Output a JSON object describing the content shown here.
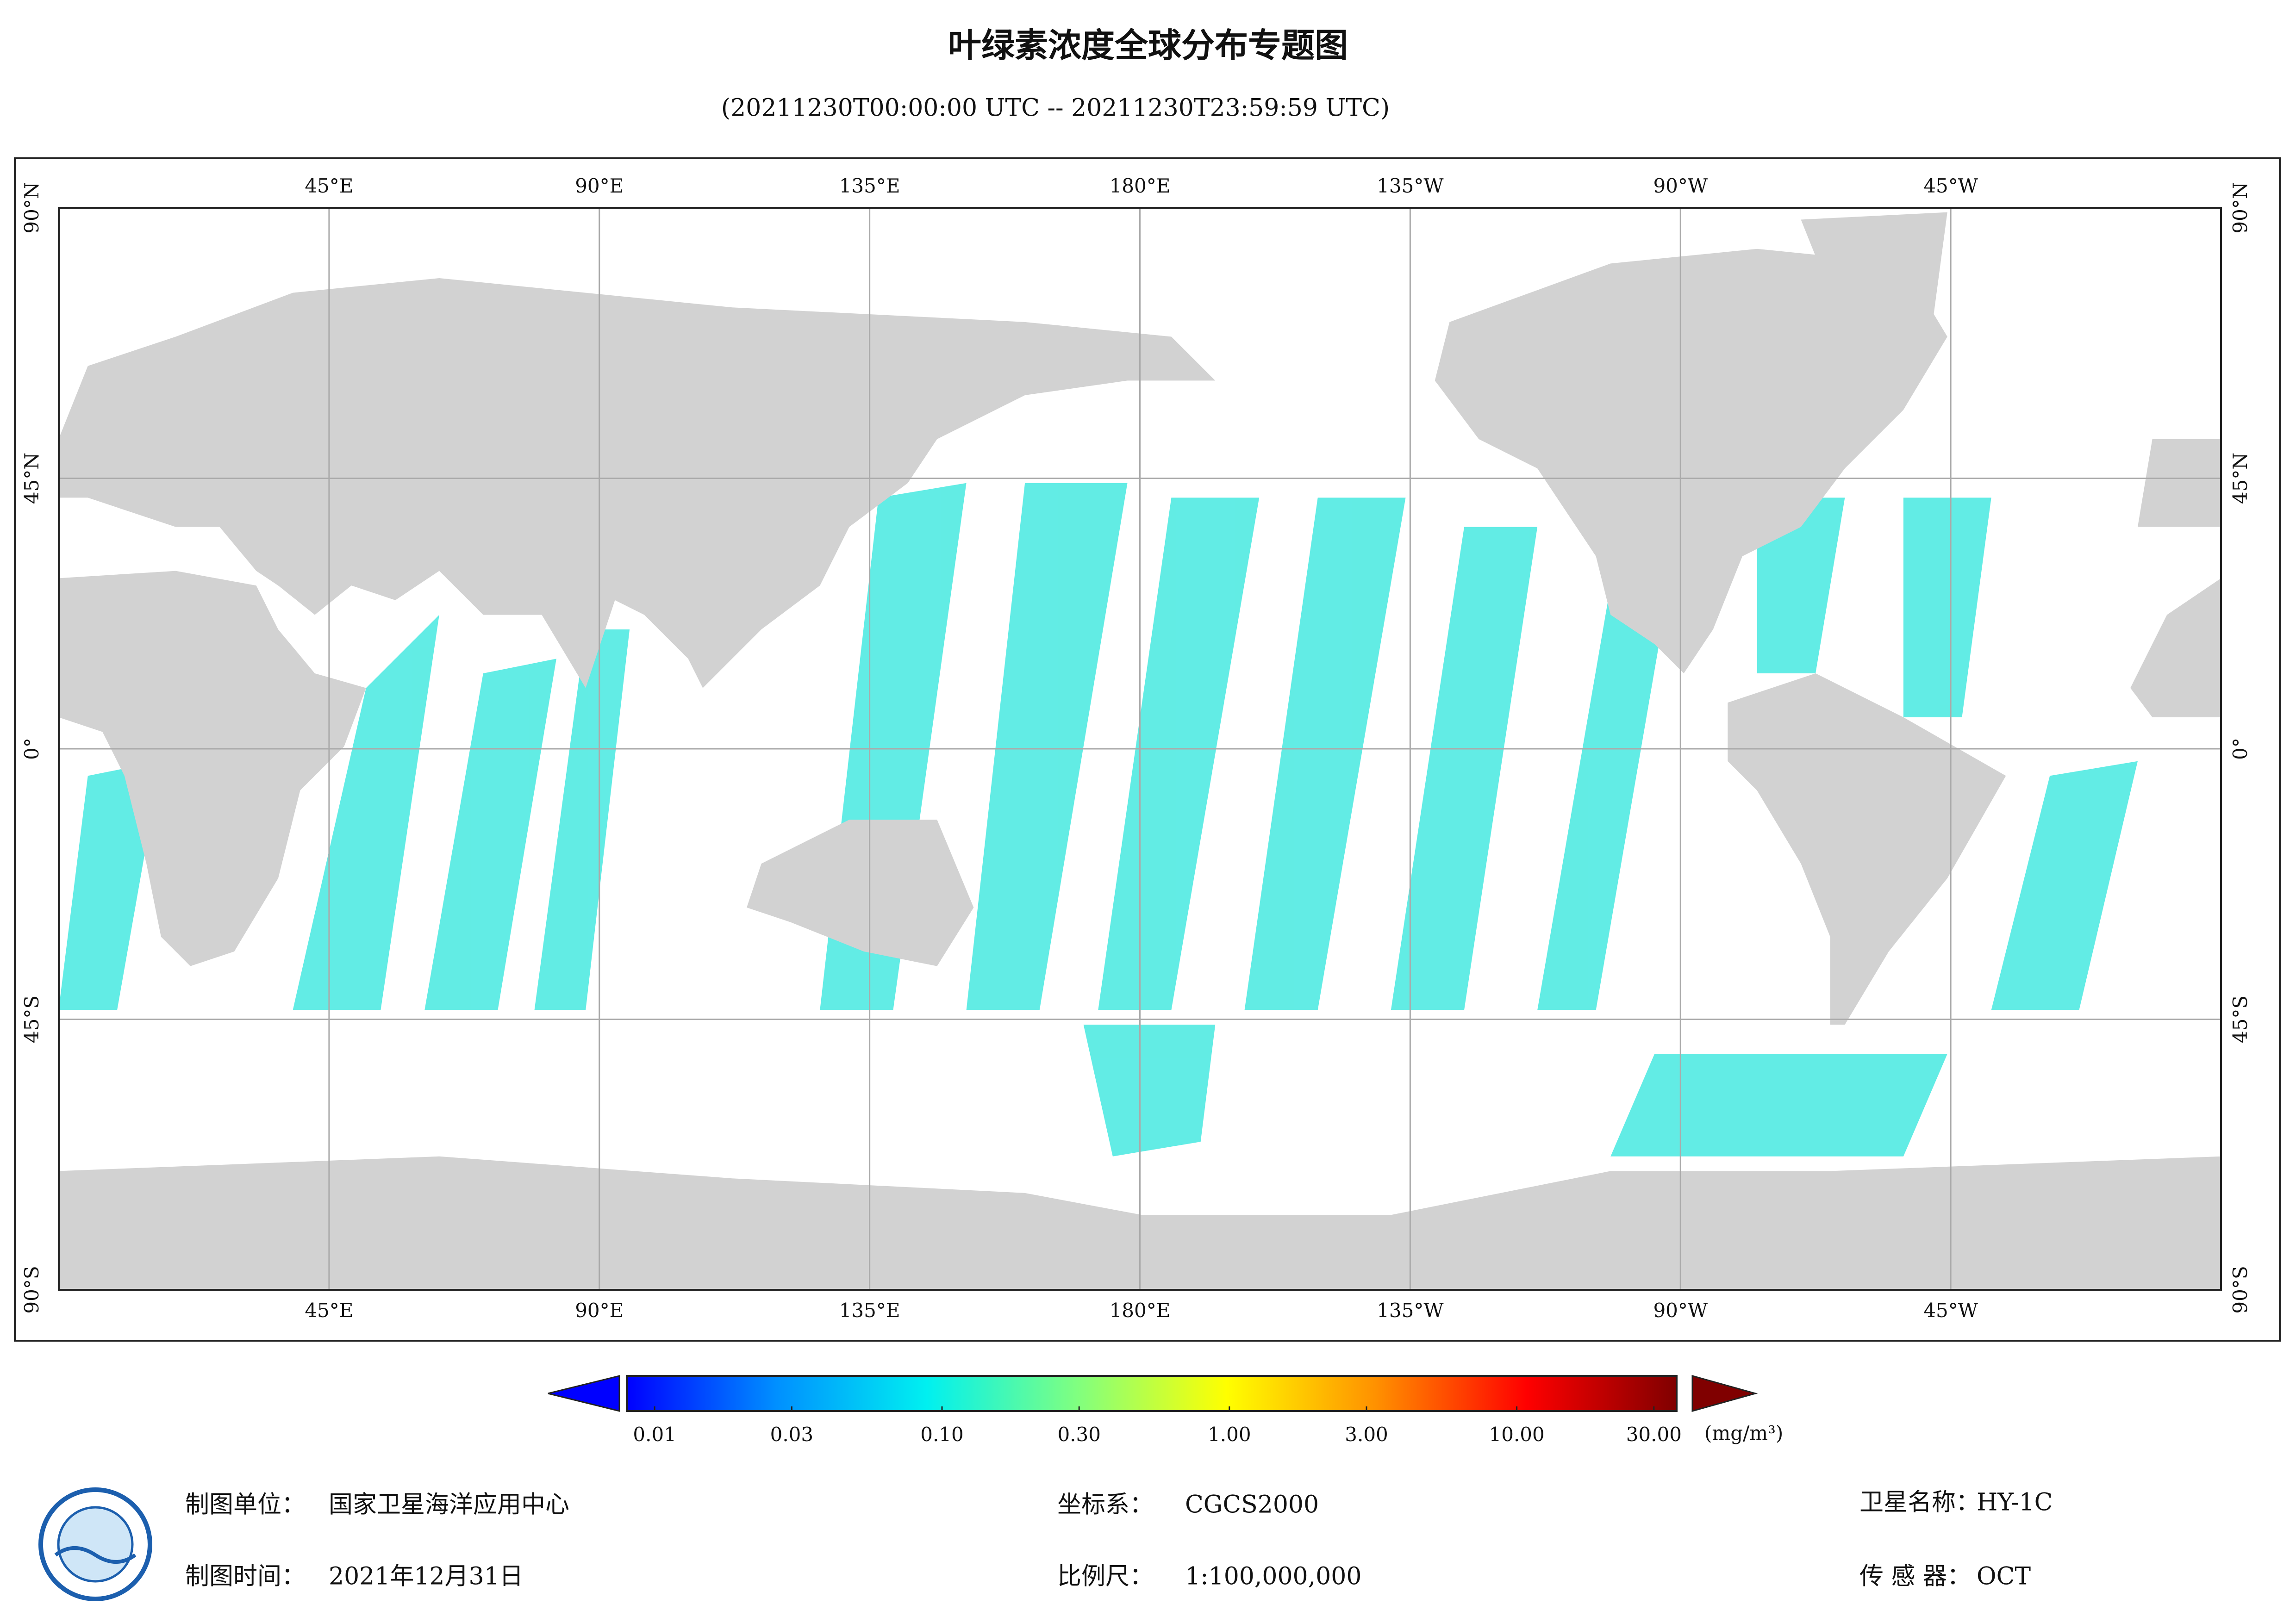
{
  "map": {
    "title": "叶绿素浓度全球分布专题图",
    "subtitle": "(20211230T00:00:00 UTC -- 20211230T23:59:59 UTC)",
    "lon_ticks": [
      {
        "value": 45,
        "label": "45°E"
      },
      {
        "value": 90,
        "label": "90°E"
      },
      {
        "value": 135,
        "label": "135°E"
      },
      {
        "value": 180,
        "label": "180°E"
      },
      {
        "value": -135,
        "label": "135°W"
      },
      {
        "value": -90,
        "label": "90°W"
      },
      {
        "value": -45,
        "label": "45°W"
      }
    ],
    "lat_ticks": [
      {
        "value": 90,
        "label": "90°N"
      },
      {
        "value": 45,
        "label": "45°N"
      },
      {
        "value": 0,
        "label": "0°"
      },
      {
        "value": -45,
        "label": "45°S"
      },
      {
        "value": -90,
        "label": "90°S"
      }
    ],
    "colorbar": {
      "ticks": [
        0.01,
        0.03,
        {
          "value": 0.1,
          "label": "0.10"
        },
        {
          "value": 0.3,
          "label": "0.30"
        },
        {
          "value": 1,
          "label": "1.00"
        },
        {
          "value": 3,
          "label": "3.00"
        },
        {
          "value": 10,
          "label": "10.00"
        },
        {
          "value": 30,
          "label": "30.00"
        }
      ],
      "clim": [
        0.008,
        36
      ],
      "log": true,
      "colors": [
        "#0000ff",
        "#0090ff",
        "#00f0f0",
        "#80ff80",
        "#ffff00",
        "#ff9000",
        "#ff0000",
        "#800000"
      ],
      "unit": "(mg/m³)"
    },
    "footer": {
      "unit_label": "制图单位：",
      "unit_value": "国家卫星海洋应用中心",
      "time_label": "制图时间：",
      "time_value": "2021年12月31日",
      "crs_label": "坐标系：",
      "crs_value": "CGCS2000",
      "scale_label": "比例尺：",
      "scale_value": "1:100,000,000",
      "sat_label": "卫星名称：",
      "sat_value": "HY-1C",
      "sensor_label": "传 感 器：",
      "sensor_value": "OCT"
    }
  }
}
